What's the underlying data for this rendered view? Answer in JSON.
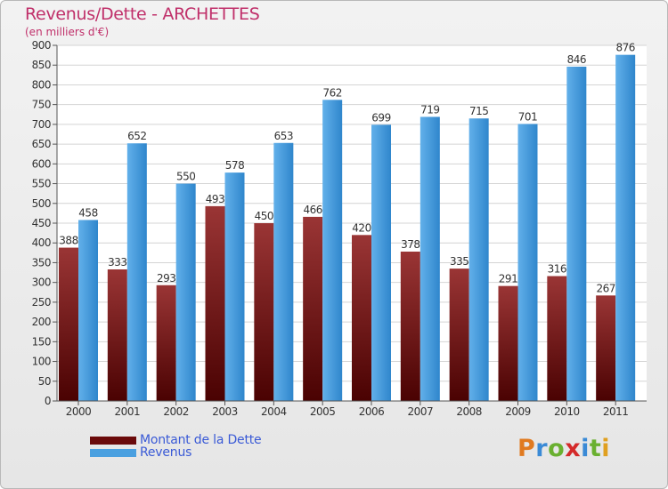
{
  "title": "Revenus/Dette - ARCHETTES",
  "subtitle": "(en milliers d'€)",
  "chart_data": {
    "type": "bar",
    "categories": [
      "2000",
      "2001",
      "2002",
      "2003",
      "2004",
      "2005",
      "2006",
      "2007",
      "2008",
      "2009",
      "2010",
      "2011"
    ],
    "series": [
      {
        "name": "Montant de la Dette",
        "values": [
          388,
          333,
          293,
          493,
          450,
          466,
          420,
          378,
          335,
          291,
          316,
          267
        ],
        "color": "#7a1a1a"
      },
      {
        "name": "Revenus",
        "values": [
          458,
          652,
          550,
          578,
          653,
          762,
          699,
          719,
          715,
          701,
          846,
          876
        ],
        "color": "#4aa0e0"
      }
    ],
    "title": "Revenus/Dette - ARCHETTES",
    "ylabel": "(en milliers d'€)",
    "ylim": [
      0,
      900
    ],
    "ytick_step": 50,
    "grid": true,
    "legend": "bottom-left"
  },
  "legend": {
    "items": [
      {
        "label": "Montant de la Dette",
        "color": "#6a0a0a"
      },
      {
        "label": "Revenus",
        "color": "#4aa0e0"
      }
    ]
  },
  "logo": {
    "letters": [
      "P",
      "r",
      "o",
      "x",
      "i",
      "t",
      "i"
    ],
    "colors": [
      "#e07a20",
      "#3a8ad6",
      "#6ab030",
      "#d42a2a",
      "#3a8ad6",
      "#6ab030",
      "#e0a020"
    ]
  }
}
